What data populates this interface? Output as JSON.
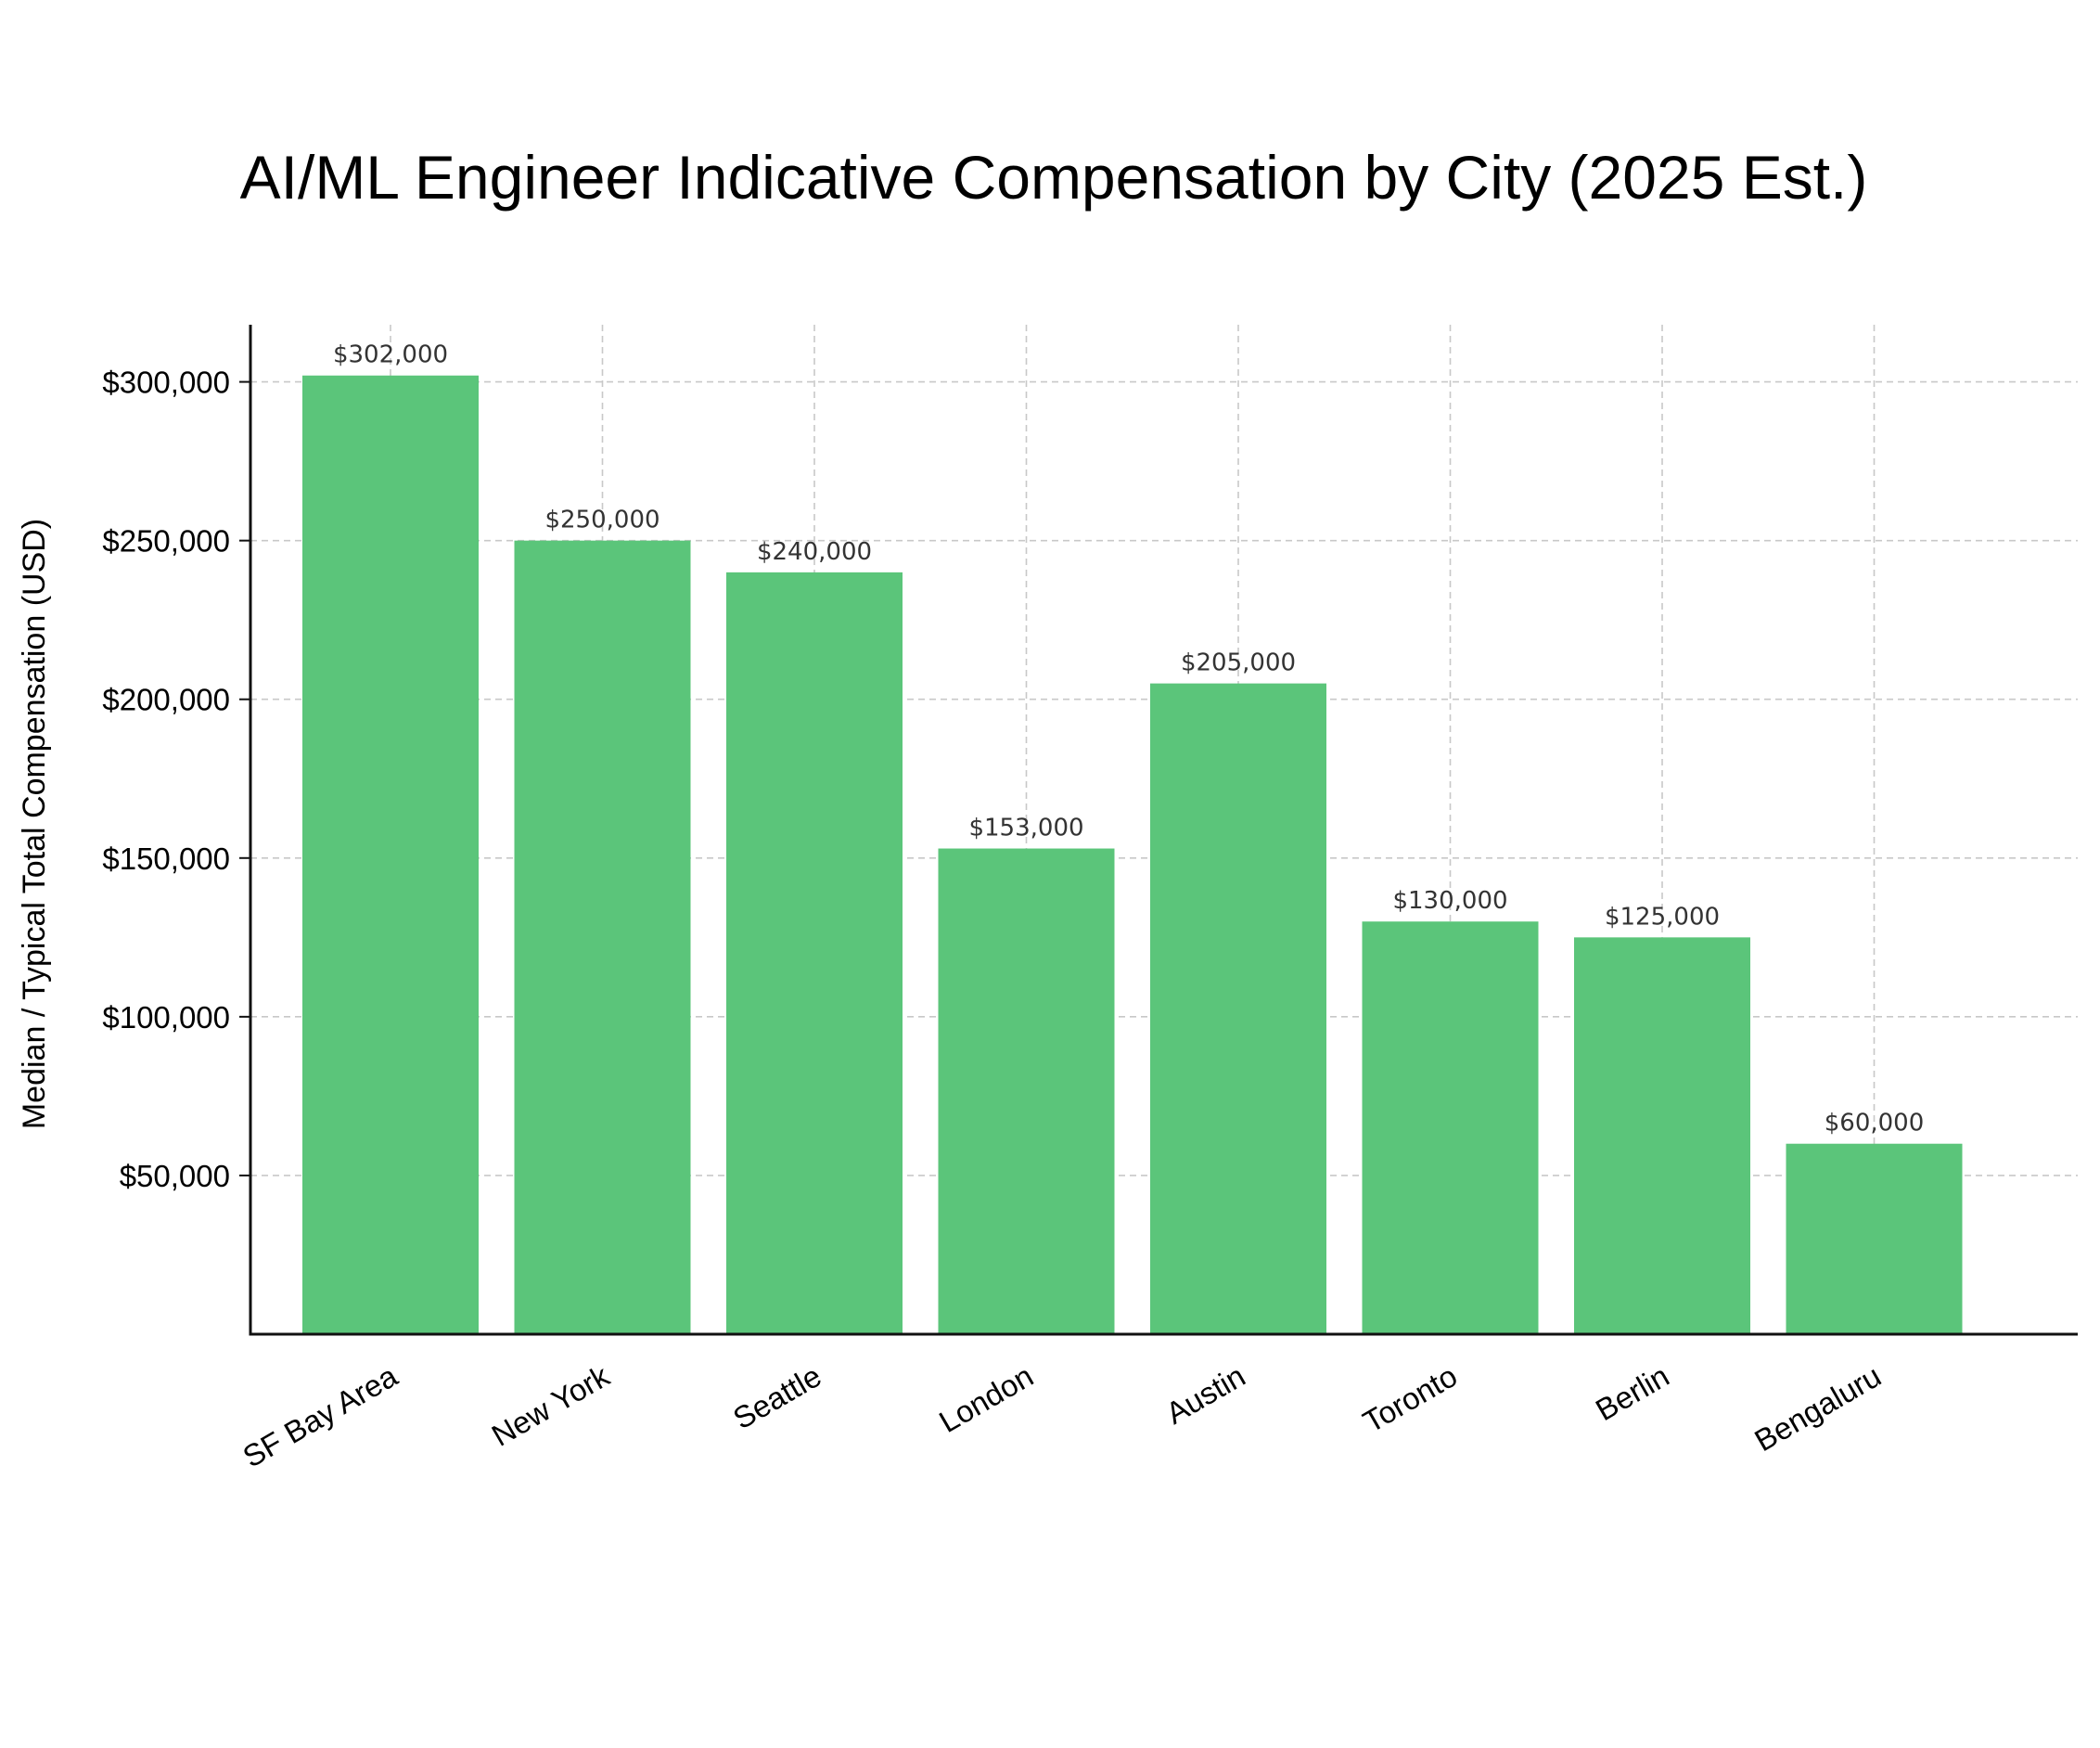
{
  "chart_data": {
    "type": "bar",
    "title": "AI/ML Engineer Indicative Compensation by City (2025 Est.)",
    "xlabel": "",
    "ylabel": "Median / Typical Total Compensation (USD)",
    "categories": [
      "SF Bay Area",
      "New York",
      "Seattle",
      "London",
      "Austin",
      "Toronto",
      "Berlin",
      "Bengaluru"
    ],
    "values": [
      302000,
      250000,
      240000,
      153000,
      205000,
      130000,
      125000,
      60000
    ],
    "data_labels": [
      "$302,000",
      "$250,000",
      "$240,000",
      "$153,000",
      "$205,000",
      "$130,000",
      "$125,000",
      "$60,000"
    ],
    "y_ticks": [
      50000,
      100000,
      150000,
      200000,
      250000,
      300000
    ],
    "y_tick_labels": [
      "$50,000",
      "$100,000",
      "$150,000",
      "$200,000",
      "$250,000",
      "$300,000"
    ],
    "ylim": [
      0,
      318000
    ],
    "grid": true,
    "legend": "none",
    "bar_color": "#5bc57a"
  }
}
